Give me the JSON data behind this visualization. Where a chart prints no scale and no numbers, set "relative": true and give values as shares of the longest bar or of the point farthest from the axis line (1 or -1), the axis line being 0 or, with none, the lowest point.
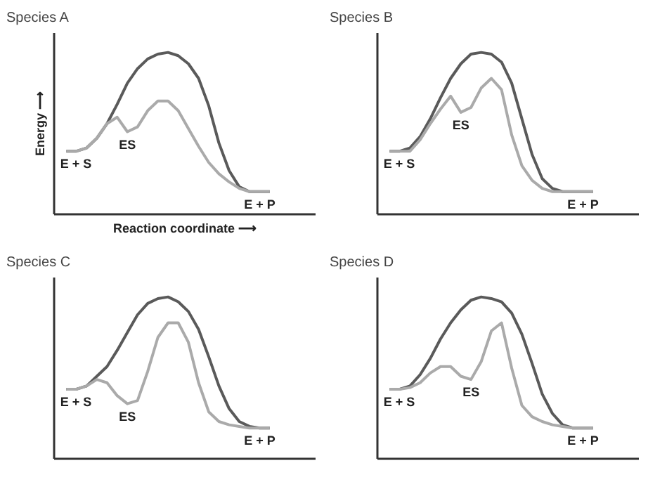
{
  "chart_data": [
    {
      "type": "line",
      "title": "Species A",
      "xlabel": "Reaction coordinate ⟶",
      "ylabel": "Energy ⟶",
      "relative": true,
      "categories": [
        null,
        null,
        null,
        null,
        null,
        null,
        null,
        null,
        null,
        null,
        null,
        null,
        null,
        null,
        null,
        null,
        null,
        null,
        null,
        null,
        null
      ],
      "series": [
        {
          "color": "#5a5a5a",
          "values": [
            0.39,
            0.39,
            0.41,
            0.47,
            0.56,
            0.68,
            0.81,
            0.9,
            0.96,
            0.99,
            1,
            0.98,
            0.93,
            0.84,
            0.67,
            0.44,
            0.27,
            0.17,
            0.14,
            0.14,
            0.14
          ]
        },
        {
          "color": "#aaaaaa",
          "values": [
            0.39,
            0.39,
            0.41,
            0.47,
            0.56,
            0.6,
            0.51,
            0.54,
            0.64,
            0.7,
            0.7,
            0.64,
            0.53,
            0.42,
            0.32,
            0.25,
            0.2,
            0.16,
            0.14,
            0.14,
            0.14
          ]
        }
      ],
      "annotations": [
        {
          "text": "E + S",
          "y": 0.39
        },
        {
          "text": "ES",
          "y": 0.51
        },
        {
          "text": "E + P",
          "y": 0.14
        }
      ]
    },
    {
      "type": "line",
      "title": "Species B",
      "relative": true,
      "categories": [
        null,
        null,
        null,
        null,
        null,
        null,
        null,
        null,
        null,
        null,
        null,
        null,
        null,
        null,
        null,
        null,
        null,
        null,
        null,
        null,
        null
      ],
      "series": [
        {
          "color": "#5a5a5a",
          "values": [
            0.39,
            0.39,
            0.41,
            0.48,
            0.59,
            0.72,
            0.84,
            0.93,
            0.99,
            1,
            0.99,
            0.94,
            0.81,
            0.59,
            0.37,
            0.22,
            0.16,
            0.14,
            0.14,
            0.14,
            0.14
          ]
        },
        {
          "color": "#aaaaaa",
          "values": [
            0.39,
            0.39,
            0.39,
            0.46,
            0.56,
            0.65,
            0.73,
            0.63,
            0.66,
            0.78,
            0.84,
            0.77,
            0.49,
            0.3,
            0.21,
            0.16,
            0.14,
            0.14,
            0.14,
            0.14,
            0.14
          ]
        }
      ],
      "annotations": [
        {
          "text": "E + S",
          "y": 0.39
        },
        {
          "text": "ES",
          "y": 0.63
        },
        {
          "text": "E + P",
          "y": 0.14
        }
      ]
    },
    {
      "type": "line",
      "title": "Species C",
      "relative": true,
      "categories": [
        null,
        null,
        null,
        null,
        null,
        null,
        null,
        null,
        null,
        null,
        null,
        null,
        null,
        null,
        null,
        null,
        null,
        null,
        null,
        null,
        null
      ],
      "series": [
        {
          "color": "#5a5a5a",
          "values": [
            0.43,
            0.43,
            0.45,
            0.51,
            0.57,
            0.67,
            0.78,
            0.89,
            0.96,
            0.99,
            1,
            0.97,
            0.91,
            0.8,
            0.63,
            0.45,
            0.31,
            0.23,
            0.2,
            0.19,
            0.19
          ]
        },
        {
          "color": "#aaaaaa",
          "values": [
            0.43,
            0.43,
            0.45,
            0.49,
            0.47,
            0.39,
            0.34,
            0.36,
            0.54,
            0.75,
            0.84,
            0.84,
            0.72,
            0.47,
            0.29,
            0.23,
            0.21,
            0.2,
            0.19,
            0.19,
            0.19
          ]
        }
      ],
      "annotations": [
        {
          "text": "E + S",
          "y": 0.43
        },
        {
          "text": "ES",
          "y": 0.34
        },
        {
          "text": "E + P",
          "y": 0.19
        }
      ]
    },
    {
      "type": "line",
      "title": "Species D",
      "relative": true,
      "categories": [
        null,
        null,
        null,
        null,
        null,
        null,
        null,
        null,
        null,
        null,
        null,
        null,
        null,
        null,
        null,
        null,
        null,
        null,
        null,
        null,
        null
      ],
      "series": [
        {
          "color": "#5a5a5a",
          "values": [
            0.43,
            0.43,
            0.45,
            0.52,
            0.62,
            0.74,
            0.84,
            0.92,
            0.98,
            1,
            0.99,
            0.97,
            0.9,
            0.77,
            0.59,
            0.4,
            0.28,
            0.21,
            0.19,
            0.19,
            0.19
          ]
        },
        {
          "color": "#aaaaaa",
          "values": [
            0.43,
            0.43,
            0.44,
            0.47,
            0.53,
            0.57,
            0.57,
            0.51,
            0.49,
            0.6,
            0.79,
            0.84,
            0.56,
            0.33,
            0.26,
            0.23,
            0.21,
            0.2,
            0.19,
            0.19,
            0.19
          ]
        }
      ],
      "annotations": [
        {
          "text": "E + S",
          "y": 0.43
        },
        {
          "text": "ES",
          "y": 0.49
        },
        {
          "text": "E + P",
          "y": 0.19
        }
      ]
    }
  ]
}
